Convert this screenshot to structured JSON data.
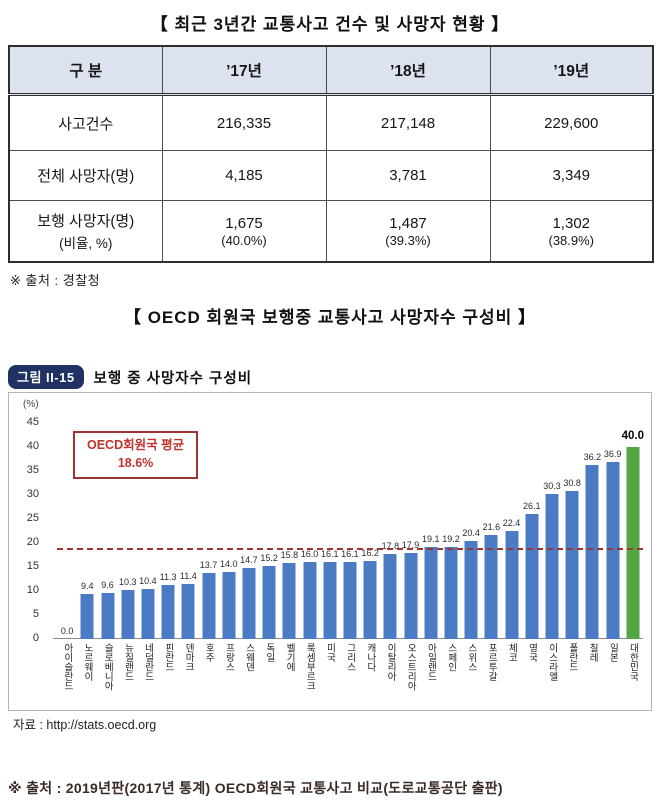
{
  "page": {
    "table_title": "【 최근 3년간 교통사고 건수 및 사망자 현황 】",
    "chart_title": "【 OECD 회원국 보행중 교통사고 사망자수 구성비 】",
    "table_source": "※ 출처 : 경찰청",
    "figure_badge": "그림 II-15",
    "figure_caption": "보행 중 사망자수 구성비",
    "chart_source": "자료 : http://stats.oecd.org",
    "footer_source": "※ 출처 : 2019년판(2017년 통계) OECD회원국 교통사고 비교(도로교통공단 출판)"
  },
  "table": {
    "headers": [
      "구  분",
      "’17년",
      "’18년",
      "’19년"
    ],
    "rows": [
      {
        "label": "사고건수",
        "values": [
          "216,335",
          "217,148",
          "229,600"
        ]
      },
      {
        "label": "전체 사망자(명)",
        "values": [
          "4,185",
          "3,781",
          "3,349"
        ]
      },
      {
        "label": "보행 사망자(명)",
        "label_sub": "(비율, %)",
        "values": [
          "1,675",
          "1,487",
          "1,302"
        ],
        "sub_values": [
          "(40.0%)",
          "(39.3%)",
          "(38.9%)"
        ]
      }
    ]
  },
  "chart_data": {
    "type": "bar",
    "title": "보행 중 사망자수 구성비",
    "unit_label": "(%)",
    "ylabel": "(%)",
    "xlabel": "",
    "ylim": [
      0,
      47.5
    ],
    "yticks": [
      0,
      5,
      10,
      15,
      20,
      25,
      30,
      35,
      40,
      45
    ],
    "grid": false,
    "categories": [
      "아이슬란드",
      "노르웨이",
      "슬로베니아",
      "뉴질랜드",
      "네덜란드",
      "핀란드",
      "덴마크",
      "호주",
      "프랑스",
      "스웨덴",
      "독일",
      "벨기에",
      "룩셈부르크",
      "미국",
      "그리스",
      "캐나다",
      "이탈리아",
      "오스트리아",
      "아일랜드",
      "스페인",
      "스위스",
      "포르투갈",
      "체코",
      "영국",
      "이스라엘",
      "폴란드",
      "칠레",
      "일본",
      "대한민국"
    ],
    "values": [
      0.0,
      9.4,
      9.6,
      10.3,
      10.4,
      11.3,
      11.4,
      13.7,
      14.0,
      14.7,
      15.2,
      15.8,
      16.0,
      16.1,
      16.1,
      16.2,
      17.8,
      17.9,
      19.1,
      19.2,
      20.4,
      21.6,
      22.4,
      26.1,
      30.3,
      30.8,
      36.2,
      36.9,
      40.0
    ],
    "bar_color": "#4a7bc4",
    "highlight_color": "#55a546",
    "highlight_index": 28,
    "average_line": {
      "value": 18.6,
      "label": "OECD회원국 평균",
      "value_label": "18.6%",
      "color": "#9e3531"
    }
  }
}
